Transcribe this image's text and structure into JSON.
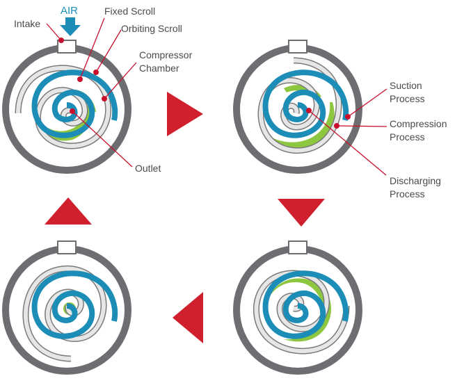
{
  "colors": {
    "housing": "#6d6e71",
    "fixed_scroll": "#1b8db7",
    "orbiting_scroll": "#d0d0d0",
    "orbiting_edge": "#7a7a7a",
    "chamber": "#8dc63f",
    "arrow": "#d0202e",
    "leader": "#c8102e",
    "air_arrow": "#1b8db7"
  },
  "labels": {
    "air": "AIR",
    "intake": "Intake",
    "fixed_scroll": "Fixed Scroll",
    "orbiting_scroll": "Orbiting Scroll",
    "compressor_chamber_1": "Compressor",
    "compressor_chamber_2": "Chamber",
    "outlet": "Outlet",
    "suction_1": "Suction",
    "suction_2": "Process",
    "compression_1": "Compression",
    "compression_2": "Process",
    "discharging_1": "Discharging",
    "discharging_2": "Process"
  },
  "stages": [
    {
      "name": "stage-1",
      "position": "top-left"
    },
    {
      "name": "stage-2",
      "position": "top-right"
    },
    {
      "name": "stage-3",
      "position": "bottom-right"
    },
    {
      "name": "stage-4",
      "position": "bottom-left"
    }
  ],
  "flow_arrows": [
    {
      "name": "arrow-right",
      "direction": "right"
    },
    {
      "name": "arrow-down",
      "direction": "down"
    },
    {
      "name": "arrow-left",
      "direction": "left"
    },
    {
      "name": "arrow-up",
      "direction": "up"
    }
  ]
}
